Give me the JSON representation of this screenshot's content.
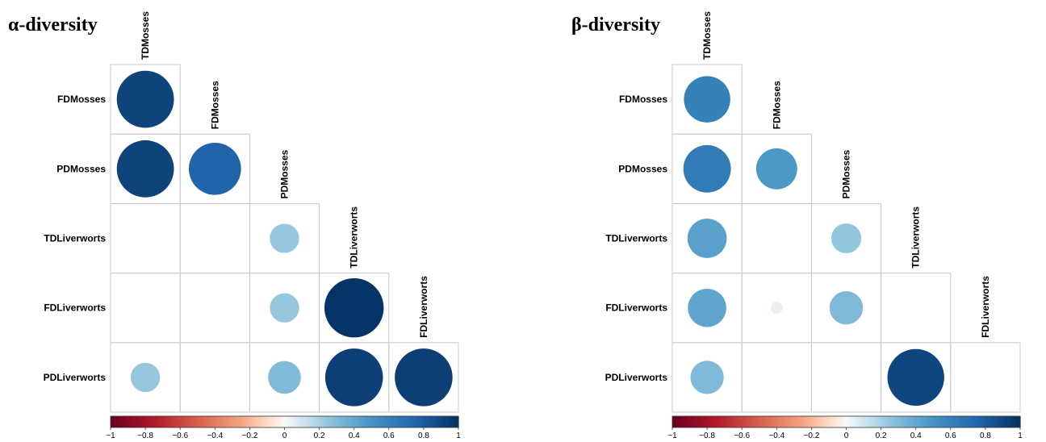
{
  "chart_data": [
    {
      "type": "heatmap",
      "title": "α-diversity",
      "variables": [
        "TDMosses",
        "FDMosses",
        "PDMosses",
        "TDLiverworts",
        "FDLiverworts",
        "PDLiverworts"
      ],
      "matrix_lower": [
        [
          null,
          null,
          null,
          null,
          null
        ],
        [
          0.91,
          null,
          null,
          null,
          null
        ],
        [
          0.91,
          0.76,
          null,
          null,
          null
        ],
        [
          null,
          null,
          0.24,
          null,
          null
        ],
        [
          null,
          null,
          0.24,
          0.98,
          null
        ],
        [
          0.24,
          null,
          0.3,
          0.93,
          0.93
        ]
      ],
      "colorbar": {
        "ticks": [
          "−1",
          "−0.8",
          "−0.6",
          "−0.4",
          "−0.2",
          "0",
          "0.2",
          "0.4",
          "0.6",
          "0.8",
          "1"
        ],
        "range": [
          -1,
          1
        ]
      }
    },
    {
      "type": "heatmap",
      "title": "β-diversity",
      "variables": [
        "TDMosses",
        "FDMosses",
        "PDMosses",
        "TDLiverworts",
        "FDLiverworts",
        "PDLiverworts"
      ],
      "matrix_lower": [
        [
          null,
          null,
          null,
          null,
          null
        ],
        [
          0.6,
          null,
          null,
          null,
          null
        ],
        [
          0.63,
          0.47,
          null,
          null,
          null
        ],
        [
          0.43,
          null,
          0.25,
          null,
          null
        ],
        [
          0.41,
          0.04,
          0.31,
          null,
          null
        ],
        [
          0.31,
          null,
          null,
          0.9,
          null
        ]
      ],
      "colorbar": {
        "ticks": [
          "−1",
          "−0.8",
          "−0.6",
          "−0.4",
          "−0.2",
          "0",
          "0.2",
          "0.4",
          "0.6",
          "0.8",
          "1"
        ],
        "range": [
          -1,
          1
        ]
      }
    }
  ]
}
